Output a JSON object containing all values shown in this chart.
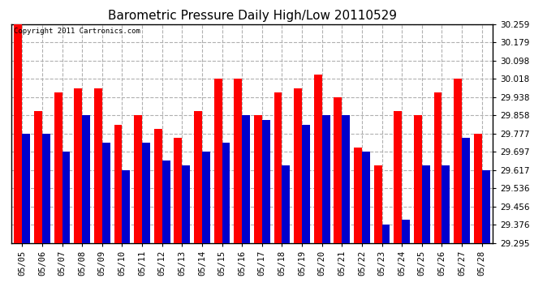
{
  "title": "Barometric Pressure Daily High/Low 20110529",
  "copyright": "Copyright 2011 Cartronics.com",
  "dates": [
    "05/05",
    "05/06",
    "05/07",
    "05/08",
    "05/09",
    "05/10",
    "05/11",
    "05/12",
    "05/13",
    "05/14",
    "05/15",
    "05/16",
    "05/17",
    "05/18",
    "05/19",
    "05/20",
    "05/21",
    "05/22",
    "05/23",
    "05/24",
    "05/25",
    "05/26",
    "05/27",
    "05/28"
  ],
  "highs": [
    30.259,
    29.878,
    29.958,
    29.978,
    29.978,
    29.818,
    29.858,
    29.798,
    29.758,
    29.878,
    30.018,
    30.018,
    29.858,
    29.958,
    29.978,
    30.038,
    29.938,
    29.718,
    29.638,
    29.878,
    29.858,
    29.958,
    30.018,
    29.778
  ],
  "lows": [
    29.778,
    29.778,
    29.698,
    29.858,
    29.738,
    29.618,
    29.738,
    29.658,
    29.638,
    29.698,
    29.738,
    29.858,
    29.838,
    29.638,
    29.818,
    29.858,
    29.858,
    29.698,
    29.378,
    29.398,
    29.638,
    29.638,
    29.758,
    29.618
  ],
  "ylim_min": 29.295,
  "ylim_max": 30.259,
  "yticks": [
    29.295,
    29.376,
    29.456,
    29.536,
    29.617,
    29.697,
    29.777,
    29.858,
    29.938,
    30.018,
    30.098,
    30.179,
    30.259
  ],
  "bar_width": 0.4,
  "high_color": "#ff0000",
  "low_color": "#0000cc",
  "bg_color": "#ffffff",
  "grid_color": "#b0b0b0",
  "title_fontsize": 11,
  "tick_fontsize": 7.5
}
